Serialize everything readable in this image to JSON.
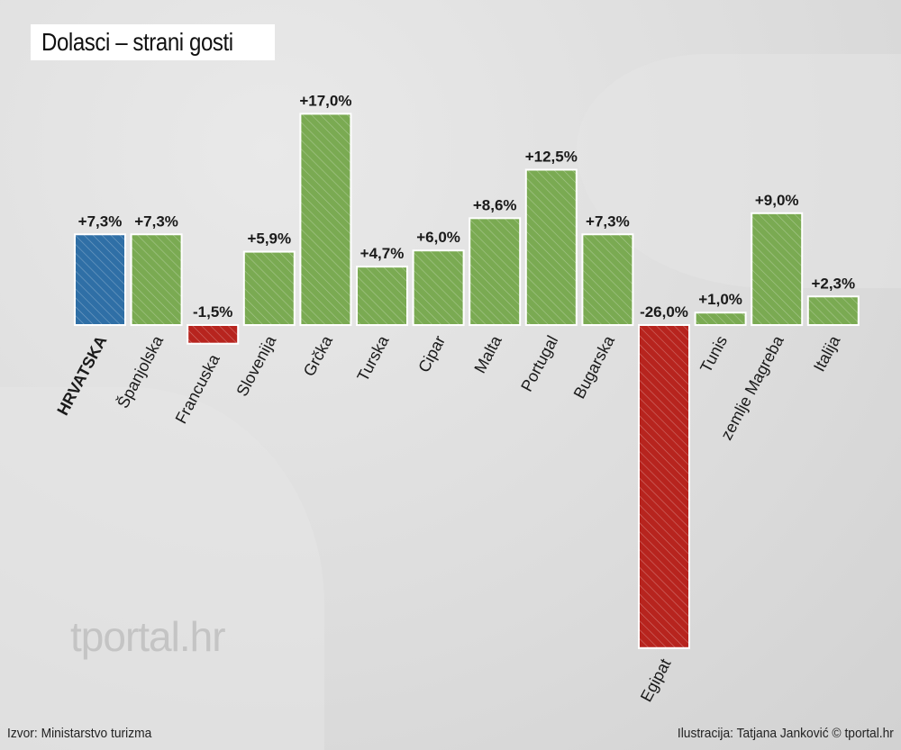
{
  "header": {
    "title": "Dolasci – strani gosti"
  },
  "watermark": "tportal.hr",
  "footer": {
    "source": "Izvor: Ministarstvo turizma",
    "credit": "Ilustracija: Tatjana Janković © tportal.hr"
  },
  "colors": {
    "highlight": "#2f6fa6",
    "positive": "#7aaa52",
    "negative": "#b7241e",
    "background": "#dcdcdc"
  },
  "chart_data": {
    "type": "bar",
    "title": "Dolasci – strani gosti",
    "xlabel": "",
    "ylabel": "",
    "grid": false,
    "categories": [
      "HRVATSKA",
      "Španjolska",
      "Francuska",
      "Slovenija",
      "Grčka",
      "Turska",
      "Cipar",
      "Malta",
      "Portugal",
      "Bugarska",
      "Egipat",
      "Tunis",
      "zemlje Magreba",
      "Italija"
    ],
    "values": [
      7.3,
      7.3,
      -1.5,
      5.9,
      17.0,
      4.7,
      6.0,
      8.6,
      12.5,
      7.3,
      -26.0,
      1.0,
      9.0,
      2.3
    ],
    "labels": [
      "+7,3%",
      "+7,3%",
      "-1,5%",
      "+5,9%",
      "+17,0%",
      "+4,7%",
      "+6,0%",
      "+8,6%",
      "+12,5%",
      "+7,3%",
      "-26,0%",
      "+1,0%",
      "+9,0%",
      "+2,3%"
    ],
    "highlight": [
      "HRVATSKA"
    ]
  }
}
